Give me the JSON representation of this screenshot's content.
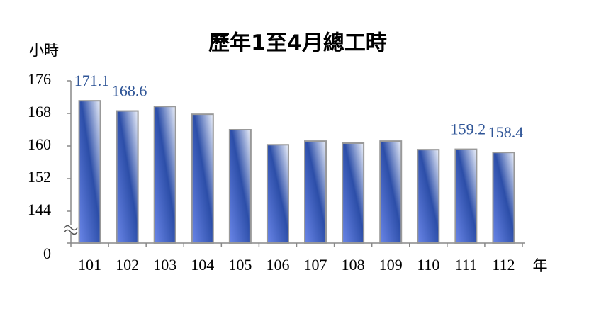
{
  "chart_data": {
    "type": "bar",
    "title": "歷年1至4月總工時",
    "y_label": "小時",
    "x_label": "年",
    "categories": [
      "101",
      "102",
      "103",
      "104",
      "105",
      "106",
      "107",
      "108",
      "109",
      "110",
      "111",
      "112"
    ],
    "values": [
      171.1,
      168.6,
      169.7,
      167.8,
      164.0,
      160.3,
      161.2,
      160.7,
      161.2,
      159.1,
      159.2,
      158.4
    ],
    "show_value_labels": [
      true,
      true,
      false,
      false,
      false,
      false,
      false,
      false,
      false,
      false,
      true,
      true
    ],
    "color": "#4a6fd6",
    "label_color": "#2f5597",
    "ylim": [
      0,
      176
    ],
    "axis_break": [
      0,
      144
    ],
    "yticks": [
      0,
      144,
      152,
      160,
      168,
      176
    ],
    "grid": false
  }
}
